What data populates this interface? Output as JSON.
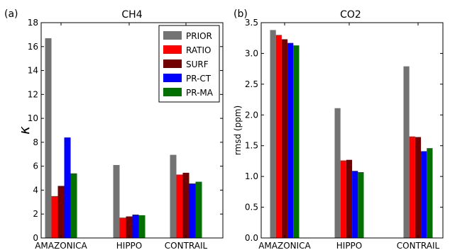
{
  "chart_data": [
    {
      "type": "bar",
      "panel_label": "(a)",
      "title": "CH4",
      "xlabel": "",
      "ylabel": "κ",
      "ylim": [
        0,
        18
      ],
      "yticks": [
        "0",
        "2",
        "4",
        "6",
        "8",
        "10",
        "12",
        "14",
        "16",
        "18"
      ],
      "categories": [
        "AMAZONICA",
        "HIPPO",
        "CONTRAIL"
      ],
      "series": [
        {
          "name": "PRIOR",
          "color": "#737373",
          "values": [
            16.7,
            6.1,
            6.95
          ]
        },
        {
          "name": "RATIO",
          "color": "#ff0000",
          "values": [
            3.5,
            1.7,
            5.3
          ]
        },
        {
          "name": "SURF",
          "color": "#730000",
          "values": [
            4.35,
            1.8,
            5.45
          ]
        },
        {
          "name": "PR-CT",
          "color": "#0000ff",
          "values": [
            8.4,
            1.95,
            4.55
          ]
        },
        {
          "name": "PR-MA",
          "color": "#007000",
          "values": [
            5.4,
            1.9,
            4.7
          ]
        }
      ],
      "grid": false,
      "legend": "top-right"
    },
    {
      "type": "bar",
      "panel_label": "(b)",
      "title": "CO2",
      "xlabel": "",
      "ylabel": "rmsd (ppm)",
      "ylim": [
        0,
        3.5
      ],
      "yticks": [
        "0.0",
        "0.5",
        "1.0",
        "1.5",
        "2.0",
        "2.5",
        "3.0",
        "3.5"
      ],
      "categories": [
        "AMAZONICA",
        "HIPPO",
        "CONTRAIL"
      ],
      "series": [
        {
          "name": "PRIOR",
          "color": "#737373",
          "values": [
            3.38,
            2.11,
            2.79
          ]
        },
        {
          "name": "RATIO",
          "color": "#ff0000",
          "values": [
            3.3,
            1.26,
            1.65
          ]
        },
        {
          "name": "SURF",
          "color": "#730000",
          "values": [
            3.23,
            1.27,
            1.64
          ]
        },
        {
          "name": "PR-CT",
          "color": "#0000ff",
          "values": [
            3.17,
            1.09,
            1.41
          ]
        },
        {
          "name": "PR-MA",
          "color": "#007000",
          "values": [
            3.13,
            1.07,
            1.46
          ]
        }
      ],
      "grid": false,
      "legend": "none"
    }
  ]
}
